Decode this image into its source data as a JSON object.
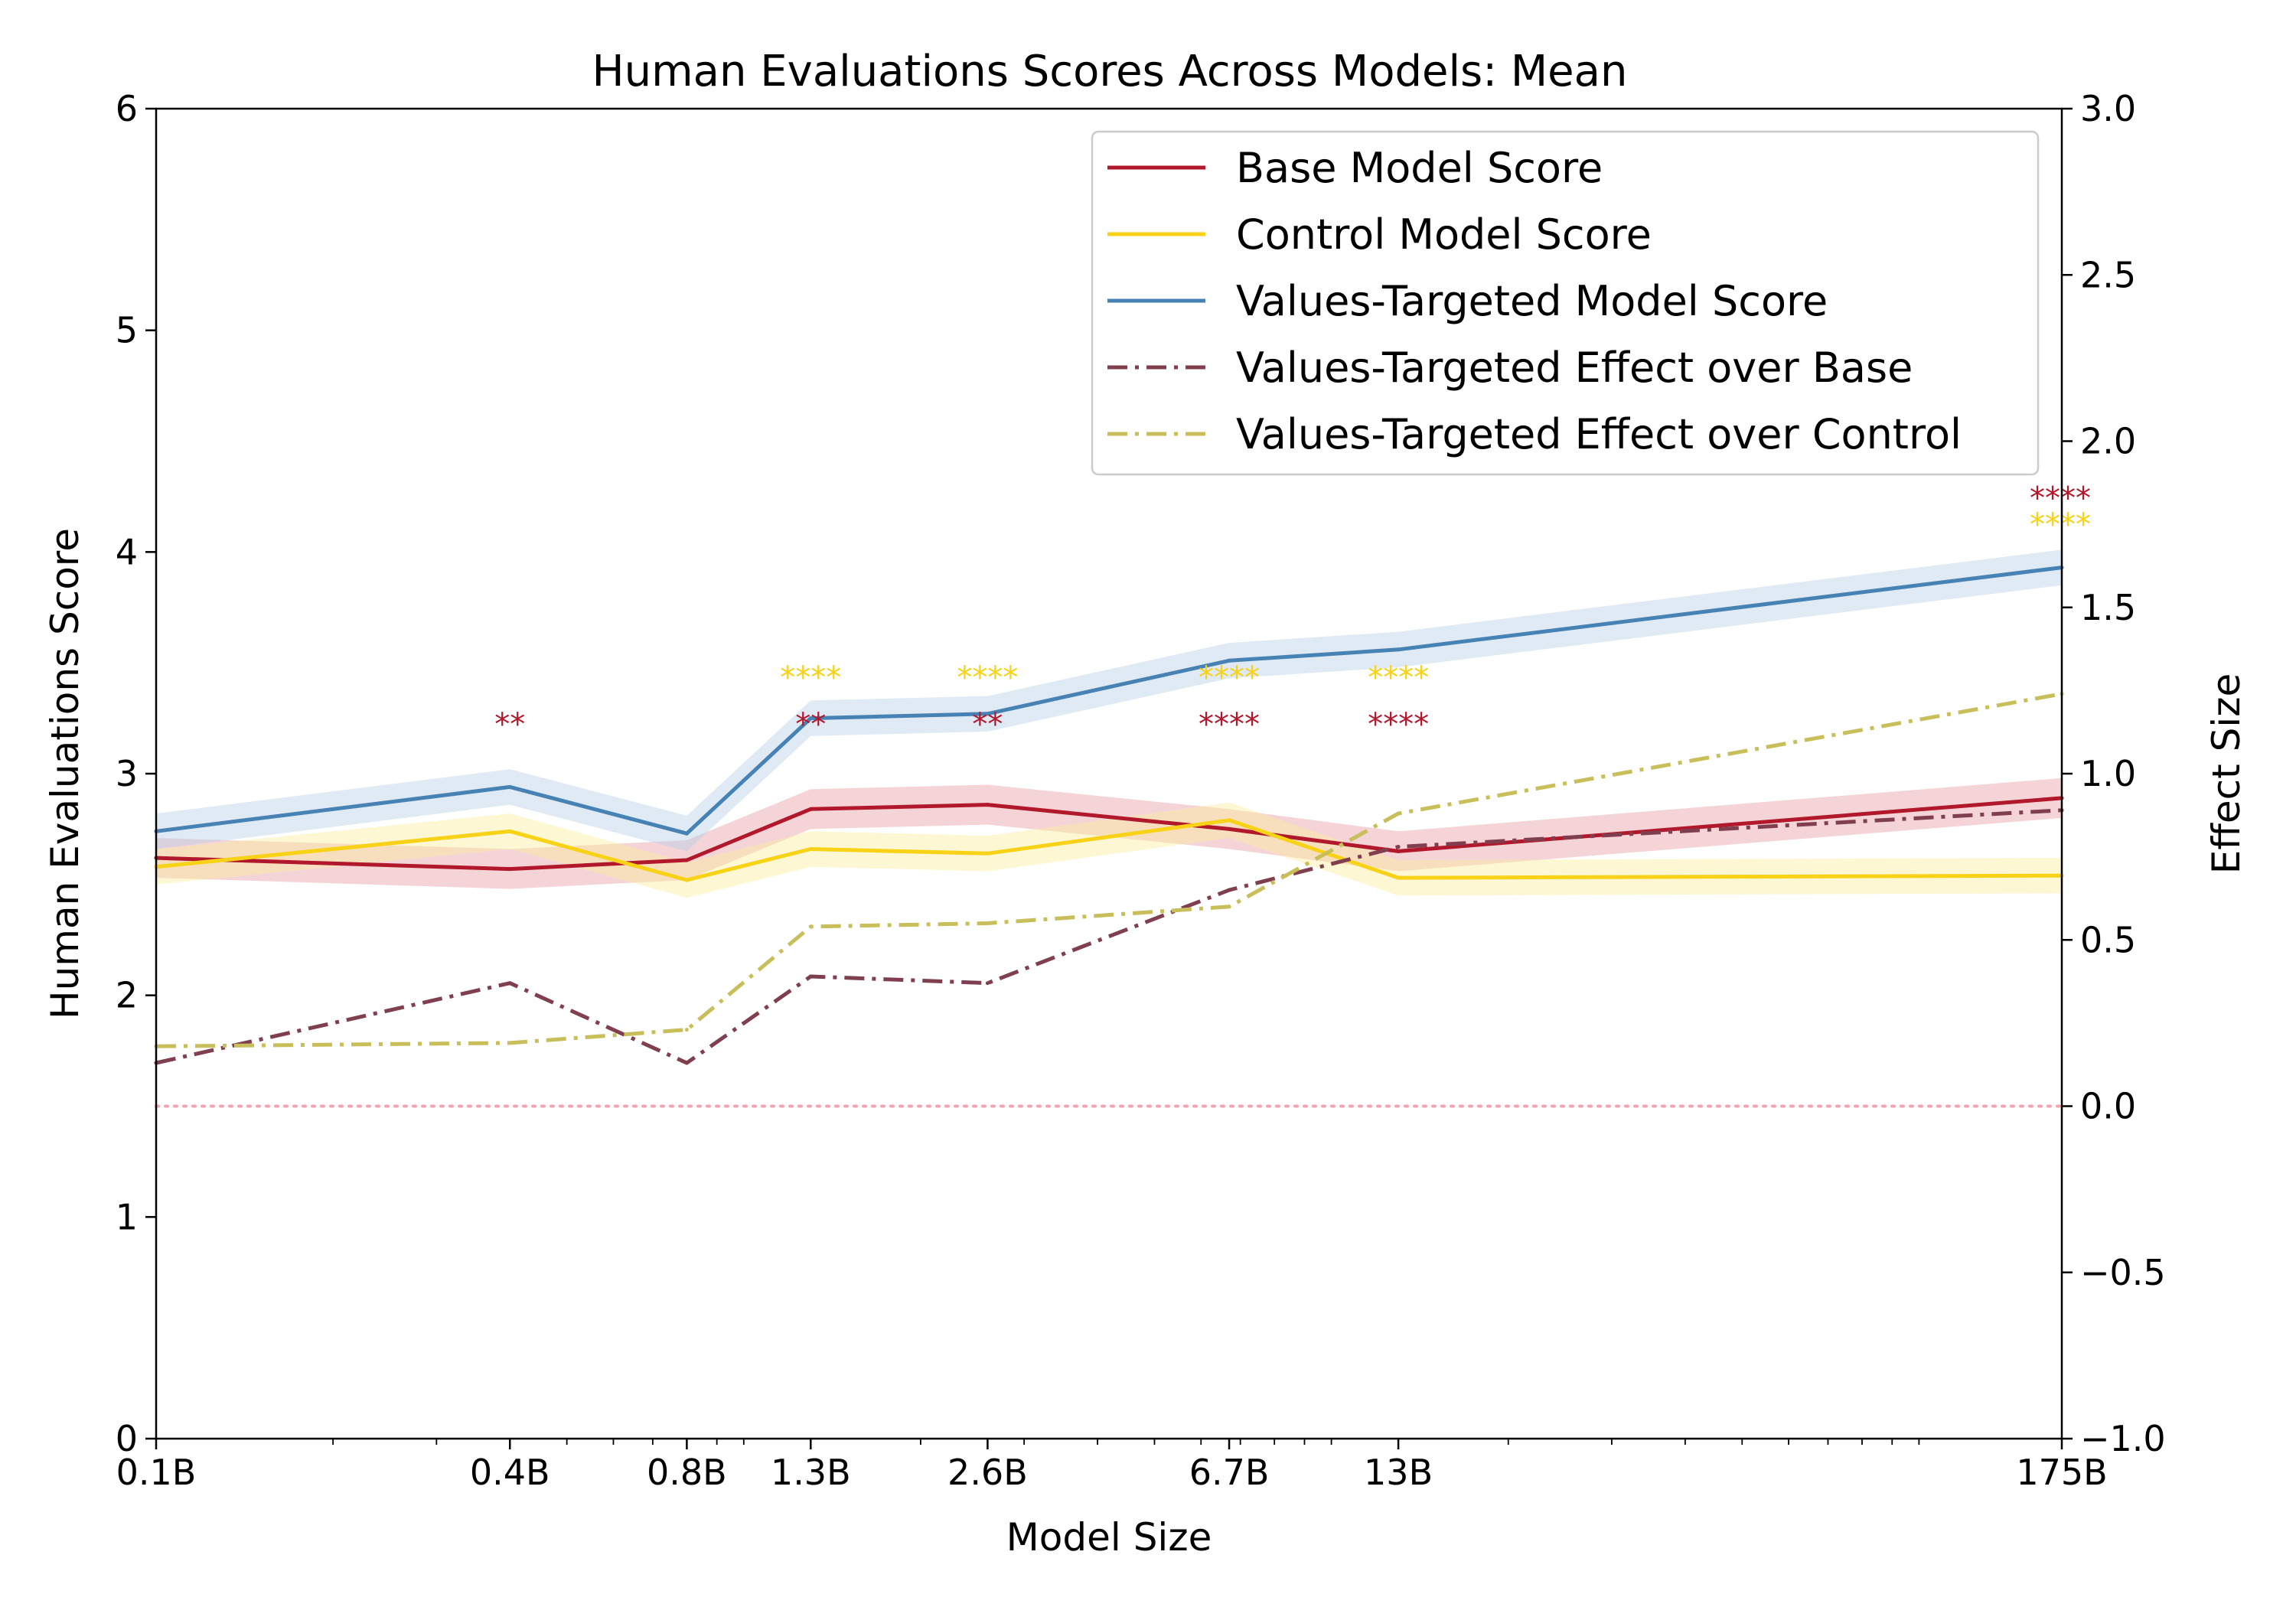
{
  "chart_data": {
    "type": "line",
    "title": "Human Evaluations Scores Across Models: Mean",
    "xlabel": "Model Size",
    "ylabel": "Human Evaluations Score",
    "ylabel_right": "Effect Size",
    "x_scale": "log",
    "x_values_billions": [
      0.1,
      0.4,
      0.8,
      1.3,
      2.6,
      6.7,
      13,
      175
    ],
    "categories": [
      "0.1B",
      "0.4B",
      "0.8B",
      "1.3B",
      "2.6B",
      "6.7B",
      "13B",
      "175B"
    ],
    "ylim": [
      0,
      6
    ],
    "yticks": [
      "0",
      "1",
      "2",
      "3",
      "4",
      "5",
      "6"
    ],
    "ylim_right": [
      -1.0,
      3.0
    ],
    "yticks_right": [
      "−1.0",
      "−0.5",
      "0.0",
      "0.5",
      "1.0",
      "1.5",
      "2.0",
      "2.5",
      "3.0"
    ],
    "zero_effect_line": 0.0,
    "series": [
      {
        "name": "Base Model Score",
        "axis": "left",
        "style": "solid",
        "color": "#b2182b",
        "band_color": "#e8a0a8",
        "band": 0.09,
        "values": [
          2.62,
          2.57,
          2.61,
          2.84,
          2.86,
          2.75,
          2.65,
          2.89
        ]
      },
      {
        "name": "Control Model Score",
        "axis": "left",
        "style": "solid",
        "color": "#f7d216",
        "band_color": "#fbeea0",
        "band": 0.08,
        "values": [
          2.58,
          2.74,
          2.52,
          2.66,
          2.64,
          2.79,
          2.53,
          2.54
        ]
      },
      {
        "name": "Values-Targeted Model Score",
        "axis": "left",
        "style": "solid",
        "color": "#4682b4",
        "band_color": "#b8d0e6",
        "band": 0.08,
        "values": [
          2.74,
          2.94,
          2.73,
          3.25,
          3.27,
          3.51,
          3.56,
          3.93
        ]
      },
      {
        "name": "Values-Targeted Effect over Base",
        "axis": "right",
        "style": "dashdot",
        "color": "#7f3f4f",
        "values": [
          0.13,
          0.37,
          0.13,
          0.39,
          0.37,
          0.65,
          0.78,
          0.89
        ]
      },
      {
        "name": "Values-Targeted Effect over Control",
        "axis": "right",
        "style": "dashdot",
        "color": "#c8be5a",
        "values": [
          0.18,
          0.19,
          0.23,
          0.54,
          0.55,
          0.6,
          0.88,
          1.24
        ]
      }
    ],
    "significance": [
      {
        "x": 0.4,
        "base": "**",
        "control": ""
      },
      {
        "x": 1.3,
        "base": "**",
        "control": "****"
      },
      {
        "x": 2.6,
        "base": "**",
        "control": "****"
      },
      {
        "x": 6.7,
        "base": "****",
        "control": "****"
      },
      {
        "x": 13,
        "base": "****",
        "control": "****"
      },
      {
        "x": 175,
        "base": "****",
        "control": "****"
      }
    ],
    "significance_y": {
      "base": 3.28,
      "control": 3.49,
      "base_175": 4.3,
      "control_175": 4.18
    },
    "significance_colors": {
      "base": "#b2182b",
      "control": "#f7d216"
    },
    "legend_position": "upper-right"
  }
}
